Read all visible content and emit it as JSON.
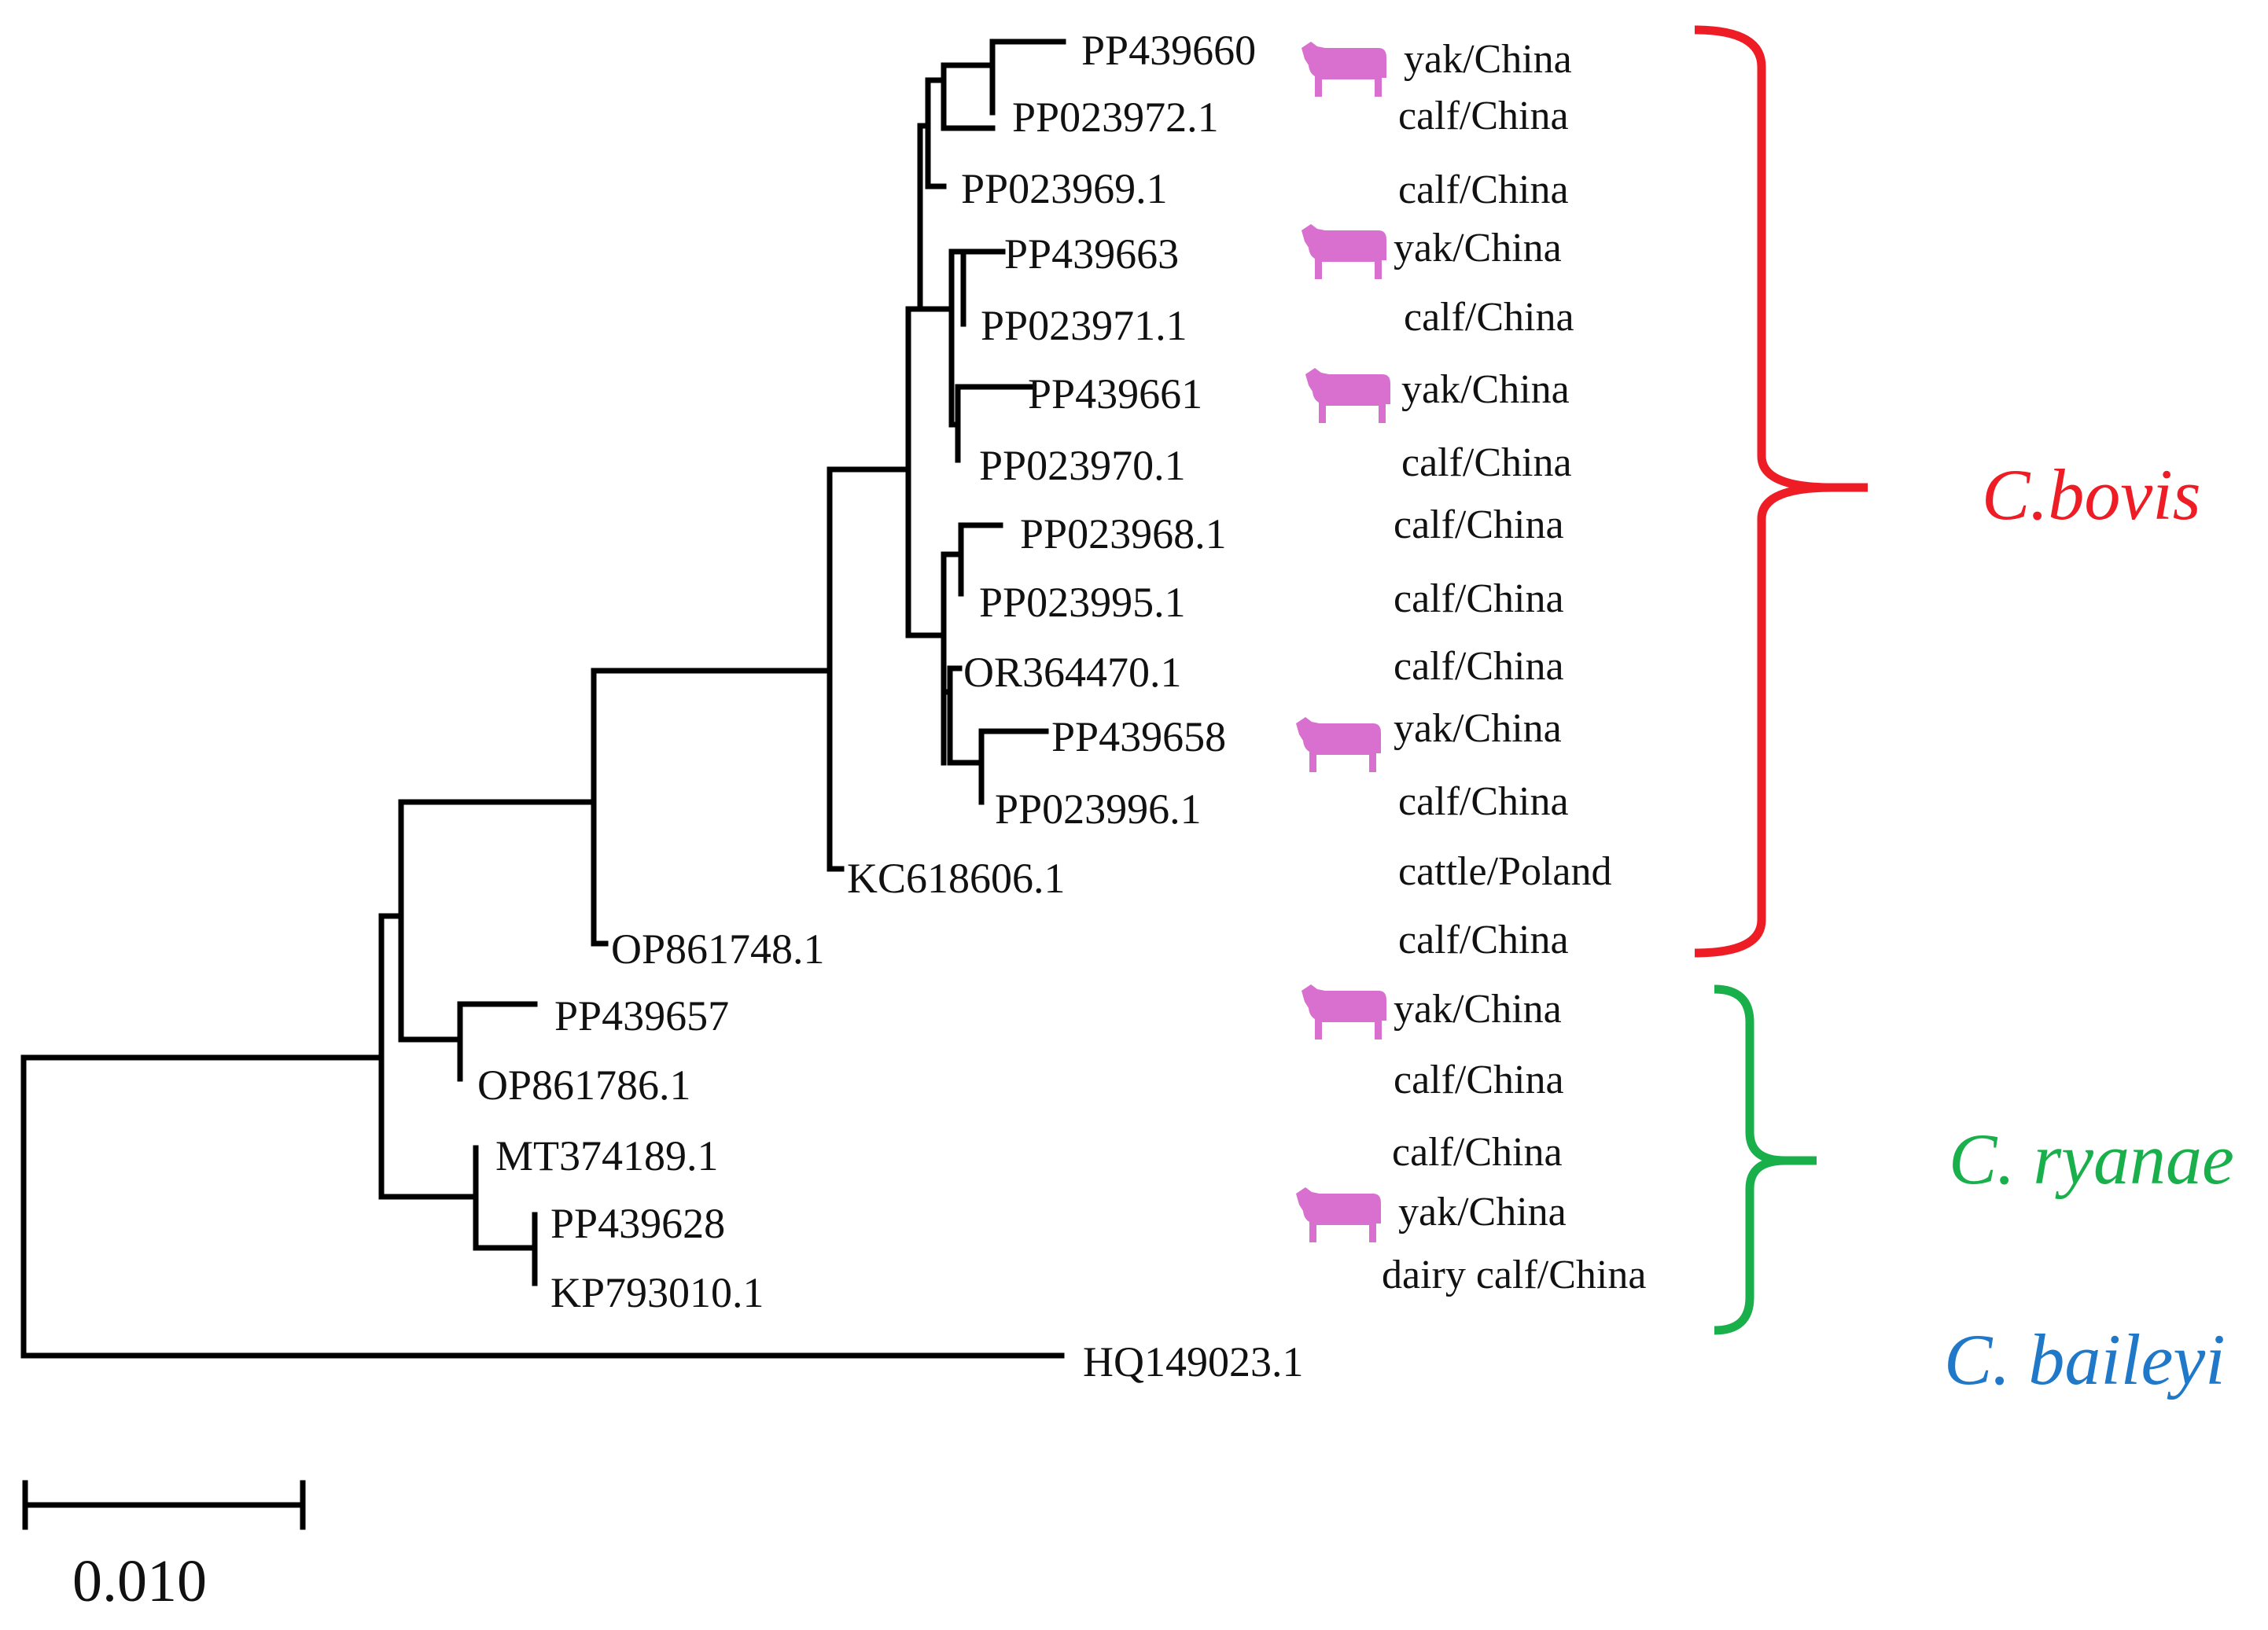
{
  "tree": {
    "taxa": [
      {
        "accession": "PP439660",
        "host": "yak/China",
        "yak_icon": true
      },
      {
        "accession": "PP023972.1",
        "host": "calf/China",
        "yak_icon": false
      },
      {
        "accession": "PP023969.1",
        "host": "calf/China",
        "yak_icon": false
      },
      {
        "accession": "PP439663",
        "host": "yak/China",
        "yak_icon": true
      },
      {
        "accession": "PP023971.1",
        "host": "calf/China",
        "yak_icon": false
      },
      {
        "accession": "PP439661",
        "host": "yak/China",
        "yak_icon": true
      },
      {
        "accession": "PP023970.1",
        "host": "calf/China",
        "yak_icon": false
      },
      {
        "accession": "PP023968.1",
        "host": "calf/China",
        "yak_icon": false
      },
      {
        "accession": "PP023995.1",
        "host": "calf/China",
        "yak_icon": false
      },
      {
        "accession": "OR364470.1",
        "host": "calf/China",
        "yak_icon": false
      },
      {
        "accession": "PP439658",
        "host": "yak/China",
        "yak_icon": true
      },
      {
        "accession": "PP023996.1",
        "host": "calf/China",
        "yak_icon": false
      },
      {
        "accession": "KC618606.1",
        "host": "cattle/Poland",
        "yak_icon": false
      },
      {
        "accession": "OP861748.1",
        "host": "calf/China",
        "yak_icon": false
      },
      {
        "accession": "PP439657",
        "host": "yak/China",
        "yak_icon": true
      },
      {
        "accession": "OP861786.1",
        "host": "calf/China",
        "yak_icon": false
      },
      {
        "accession": "MT374189.1",
        "host": "calf/China",
        "yak_icon": false
      },
      {
        "accession": "PP439628",
        "host": "yak/China",
        "yak_icon": true
      },
      {
        "accession": "KP793010.1",
        "host": "dairy calf/China",
        "yak_icon": false
      },
      {
        "accession": "HQ149023.1",
        "host": "",
        "yak_icon": false
      }
    ],
    "clades": [
      {
        "name": "C.bovis",
        "color": "#ee1c25"
      },
      {
        "name": "C. ryanae",
        "color": "#19b04b"
      },
      {
        "name": "C. baileyi",
        "color": "#1f78c8"
      }
    ],
    "scale_bar": {
      "label": "0.010",
      "length": 0.01
    },
    "icon_color": "#d96fce",
    "branch_color": "#000000"
  }
}
